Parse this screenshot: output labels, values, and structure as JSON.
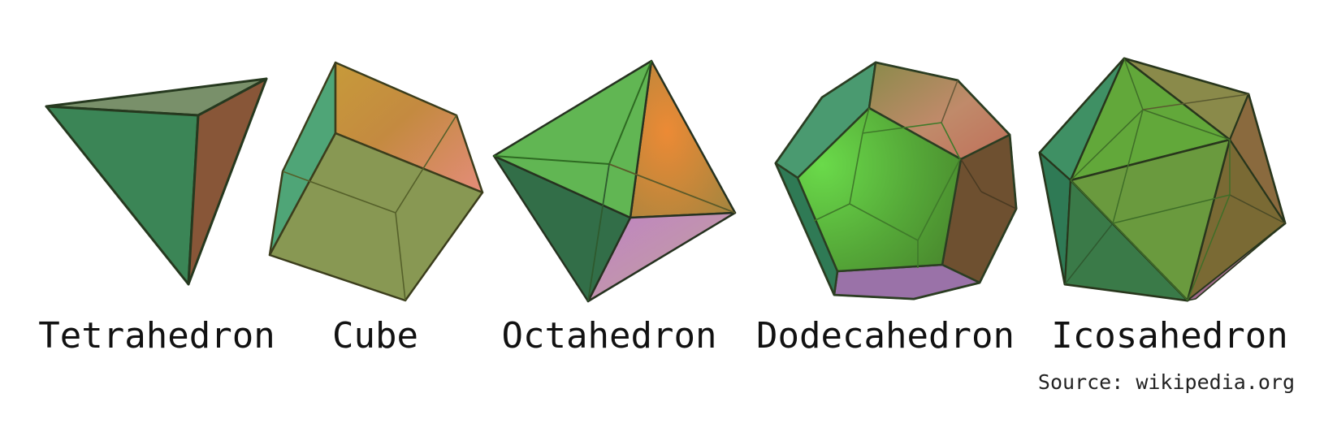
{
  "solids": [
    {
      "name": "Tetrahedron"
    },
    {
      "name": "Cube"
    },
    {
      "name": "Octahedron"
    },
    {
      "name": "Dodecahedron"
    },
    {
      "name": "Icosahedron"
    }
  ],
  "source": "Source: wikipedia.org",
  "colors": {
    "green": "#3d8a55",
    "olive": "#82944a",
    "brown": "#8a5637",
    "orange": "#d8893a",
    "violet": "#b488b6",
    "edge": "#2f3a1e"
  }
}
